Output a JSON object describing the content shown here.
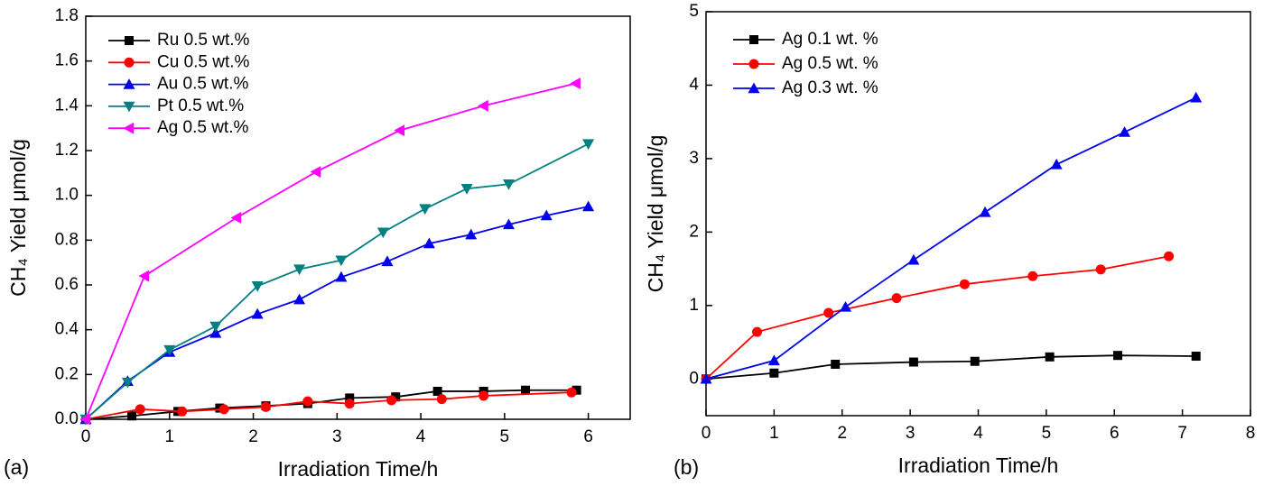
{
  "chart_data": [
    {
      "type": "line",
      "panel_label": "(a)",
      "xlabel": "Irradiation Time/h",
      "ylabel": "CH₄ Yield μmol/g",
      "xlim": [
        0,
        6.5
      ],
      "xticks": [
        0,
        1,
        2,
        3,
        4,
        5,
        6
      ],
      "ylim": [
        0,
        1.8
      ],
      "yticks": [
        {
          "value": 0,
          "label": "0.0"
        },
        {
          "value": 0.2,
          "label": "0.2"
        },
        {
          "value": 0.4,
          "label": "0.4"
        },
        {
          "value": 0.6,
          "label": "0.6"
        },
        {
          "value": 0.8,
          "label": "0.8"
        },
        {
          "value": 1.0,
          "label": "1.0"
        },
        {
          "value": 1.2,
          "label": "1.2"
        },
        {
          "value": 1.4,
          "label": "1.4"
        },
        {
          "value": 1.6,
          "label": "1.6"
        },
        {
          "value": 1.8,
          "label": "1.8"
        }
      ],
      "legend": "upper left",
      "series": [
        {
          "name": "Ru 0.5 wt.%",
          "color": "#000000",
          "marker": "square",
          "x": [
            0,
            0.55,
            1.1,
            1.6,
            2.15,
            2.65,
            3.15,
            3.7,
            4.2,
            4.75,
            5.25,
            5.86
          ],
          "values": [
            0,
            0.015,
            0.035,
            0.05,
            0.06,
            0.07,
            0.095,
            0.1,
            0.125,
            0.125,
            0.13,
            0.13
          ]
        },
        {
          "name": "Cu 0.5 wt.%",
          "color": "#ff0000",
          "marker": "circle",
          "x": [
            0,
            0.65,
            1.15,
            1.65,
            2.15,
            2.65,
            3.15,
            3.65,
            4.25,
            4.75,
            5.8
          ],
          "values": [
            0,
            0.045,
            0.035,
            0.045,
            0.055,
            0.08,
            0.07,
            0.085,
            0.09,
            0.105,
            0.12
          ]
        },
        {
          "name": "Au 0.5 wt.%",
          "color": "#0000ee",
          "marker": "triangle-up",
          "x": [
            0,
            0.5,
            1.0,
            1.55,
            2.05,
            2.55,
            3.05,
            3.6,
            4.1,
            4.6,
            5.05,
            5.5,
            6.0
          ],
          "values": [
            0,
            0.17,
            0.3,
            0.385,
            0.47,
            0.535,
            0.635,
            0.705,
            0.785,
            0.825,
            0.87,
            0.91,
            0.95
          ]
        },
        {
          "name": "Pt 0.5 wt.%",
          "color": "#008080",
          "marker": "triangle-down",
          "x": [
            0,
            0.5,
            1.0,
            1.55,
            2.05,
            2.55,
            3.05,
            3.55,
            4.05,
            4.55,
            5.05,
            6.0
          ],
          "values": [
            0,
            0.165,
            0.31,
            0.415,
            0.595,
            0.67,
            0.71,
            0.835,
            0.94,
            1.03,
            1.05,
            1.23
          ]
        },
        {
          "name": "Ag 0.5 wt.%",
          "color": "#ff00ff",
          "marker": "triangle-left",
          "x": [
            0,
            0.7,
            1.8,
            2.75,
            3.75,
            4.75,
            5.85
          ],
          "values": [
            0,
            0.64,
            0.9,
            1.105,
            1.29,
            1.4,
            1.5
          ]
        }
      ]
    },
    {
      "type": "line",
      "panel_label": "(b)",
      "xlabel": "Irradiation Time/h",
      "ylabel": "CH₄ Yield μmol/g",
      "xlim": [
        0,
        8
      ],
      "xticks": [
        0,
        1,
        2,
        3,
        4,
        5,
        6,
        7,
        8
      ],
      "ylim": [
        -0.5,
        5
      ],
      "yticks": [
        0,
        1,
        2,
        3,
        4,
        5
      ],
      "legend": "upper left",
      "series": [
        {
          "name": "Ag 0.1 wt. %",
          "color": "#000000",
          "marker": "square",
          "x": [
            0,
            1.0,
            1.9,
            3.05,
            3.95,
            5.05,
            6.05,
            7.2
          ],
          "values": [
            0,
            0.08,
            0.2,
            0.23,
            0.24,
            0.3,
            0.32,
            0.31
          ]
        },
        {
          "name": "Ag 0.5 wt. %",
          "color": "#ff0000",
          "marker": "circle",
          "x": [
            0,
            0.75,
            1.8,
            2.8,
            3.8,
            4.8,
            5.8,
            6.8
          ],
          "values": [
            0,
            0.64,
            0.9,
            1.1,
            1.29,
            1.4,
            1.49,
            1.67
          ]
        },
        {
          "name": "Ag 0.3 wt. %",
          "color": "#0000ee",
          "marker": "triangle-up",
          "x": [
            0,
            1.0,
            2.05,
            3.05,
            4.1,
            5.15,
            6.15,
            7.2
          ],
          "values": [
            0,
            0.25,
            0.98,
            1.62,
            2.27,
            2.92,
            3.36,
            3.83
          ]
        }
      ]
    }
  ]
}
